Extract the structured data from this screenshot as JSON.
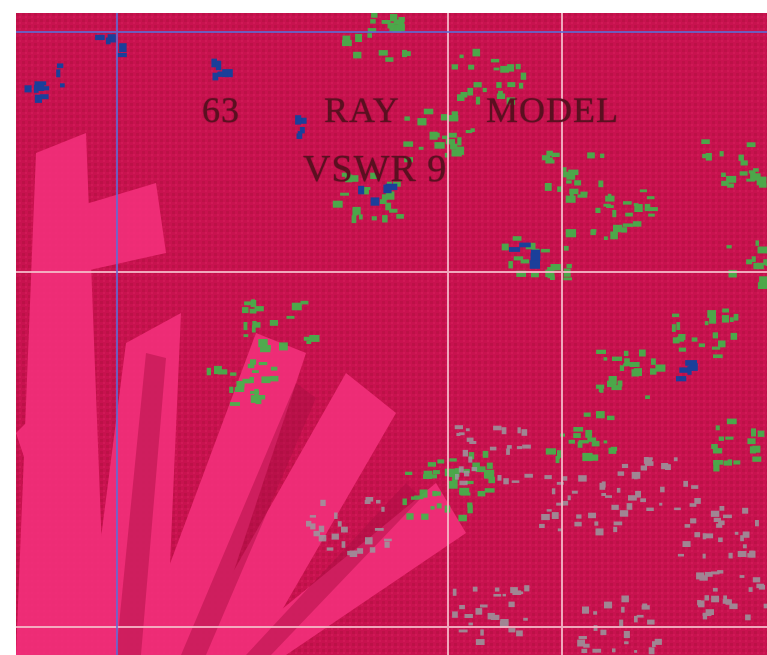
{
  "plot": {
    "labels": {
      "number": "63",
      "ray": "RAY",
      "model": "MODEL",
      "vswr": "VSWR 9"
    },
    "colors": {
      "background": "#c8124f",
      "bright_streak": "#f4307c",
      "green_region": "#3fb84a",
      "blue_spot": "#1b3f9a",
      "gray_region": "#9a9aa0",
      "grid_line": "#f5b9c8",
      "blue_line": "#5a6fd8"
    }
  }
}
